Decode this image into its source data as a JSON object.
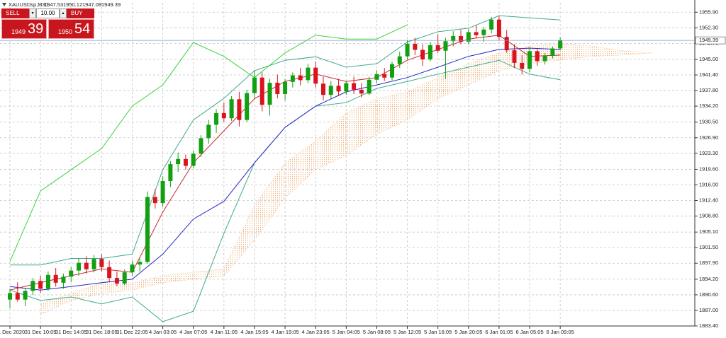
{
  "chart_data": {
    "type": "candlestick",
    "symbol": "XAUUSDsp,M30",
    "up_color": "#12a012",
    "down_color": "#d8141e",
    "grid": true,
    "grid_color": "#c4c4c4",
    "price_line_color": "#7b98d4",
    "ylim": [
      1883.4,
      1958.07
    ],
    "yticks": [
      {
        "value": 1955.9,
        "label": "1955.90"
      },
      {
        "value": 1952.3,
        "label": "1952.30"
      },
      {
        "value": 1948.7,
        "label": "1948.70"
      },
      {
        "value": 1945.0,
        "label": "1945.00"
      },
      {
        "value": 1941.4,
        "label": "1941.40"
      },
      {
        "value": 1937.8,
        "label": "1937.80"
      },
      {
        "value": 1934.2,
        "label": "1934.20"
      },
      {
        "value": 1930.5,
        "label": "1930.50"
      },
      {
        "value": 1926.9,
        "label": "1926.90"
      },
      {
        "value": 1923.3,
        "label": "1923.30"
      },
      {
        "value": 1919.6,
        "label": "1919.60"
      },
      {
        "value": 1916.0,
        "label": "1916.00"
      },
      {
        "value": 1912.4,
        "label": "1912.40"
      },
      {
        "value": 1908.8,
        "label": "1908.80"
      },
      {
        "value": 1905.1,
        "label": "1905.10"
      },
      {
        "value": 1901.5,
        "label": "1901.50"
      },
      {
        "value": 1897.9,
        "label": "1897.90"
      },
      {
        "value": 1894.2,
        "label": "1894.20"
      },
      {
        "value": 1890.6,
        "label": "1890.60"
      },
      {
        "value": 1887.0,
        "label": "1887.00"
      },
      {
        "value": 1883.4,
        "label": "1883.40"
      }
    ],
    "xlim": [
      -1,
      86
    ],
    "xticks": [
      {
        "value": 0,
        "label": "31 Dec 2020"
      },
      {
        "value": 4,
        "label": "31 Dec 10:05"
      },
      {
        "value": 8,
        "label": "31 Dec 14:05"
      },
      {
        "value": 12,
        "label": "31 Dec 18:05"
      },
      {
        "value": 16,
        "label": "31 Dec 22:05"
      },
      {
        "value": 20,
        "label": "4 Jan 03:05"
      },
      {
        "value": 24,
        "label": "4 Jan 07:05"
      },
      {
        "value": 28,
        "label": "4 Jan 11:05"
      },
      {
        "value": 32,
        "label": "4 Jan 15:05"
      },
      {
        "value": 36,
        "label": "4 Jan 19:05"
      },
      {
        "value": 40,
        "label": "4 Jan 23:05"
      },
      {
        "value": 44,
        "label": "5 Jan 04:05"
      },
      {
        "value": 48,
        "label": "5 Jan 08:05"
      },
      {
        "value": 52,
        "label": "5 Jan 12:05"
      },
      {
        "value": 56,
        "label": "5 Jan 16:05"
      },
      {
        "value": 60,
        "label": "5 Jan 20:05"
      },
      {
        "value": 64,
        "label": "6 Jan 01:05"
      },
      {
        "value": 68,
        "label": "6 Jan 05:05"
      },
      {
        "value": 72,
        "label": "6 Jan 09:05"
      }
    ],
    "candles": {
      "open": [
        1889.5,
        1891.0,
        1889.5,
        1891.5,
        1893.8,
        1892.0,
        1895.2,
        1893.4,
        1894.8,
        1896.2,
        1898.0,
        1896.5,
        1898.9,
        1897.0,
        1894.5,
        1893.2,
        1895.8,
        1897.6,
        1898.2,
        1913.2,
        1911.8,
        1916.9,
        1920.8,
        1922.0,
        1920.4,
        1923.2,
        1926.8,
        1929.9,
        1932.6,
        1931.4,
        1935.8,
        1931.0,
        1937.2,
        1940.8,
        1934.5,
        1939.6,
        1937.0,
        1939.8,
        1941.3,
        1940.2,
        1943.1,
        1939.4,
        1936.8,
        1938.9,
        1937.6,
        1939.5,
        1938.0,
        1937.1,
        1940.3,
        1941.6,
        1940.8,
        1943.9,
        1945.7,
        1948.6,
        1947.2,
        1945.0,
        1948.3,
        1947.0,
        1949.2,
        1950.4,
        1949.1,
        1951.3,
        1950.6,
        1951.9,
        1954.2,
        1950.2,
        1947.1,
        1944.2,
        1942.8,
        1946.9,
        1944.6,
        1945.8,
        1947.53
      ],
      "high": [
        1892.0,
        1893.5,
        1892.0,
        1894.5,
        1895.0,
        1896.0,
        1896.8,
        1895.5,
        1897.0,
        1899.0,
        1899.5,
        1899.8,
        1900.0,
        1898.5,
        1896.0,
        1896.5,
        1898.5,
        1899.0,
        1914.5,
        1915.0,
        1918.0,
        1921.5,
        1923.5,
        1923.0,
        1924.0,
        1927.5,
        1931.0,
        1933.5,
        1935.0,
        1936.5,
        1937.5,
        1938.0,
        1942.5,
        1942.0,
        1940.5,
        1941.5,
        1940.5,
        1942.0,
        1943.0,
        1944.0,
        1944.5,
        1941.0,
        1940.0,
        1940.5,
        1940.0,
        1941.0,
        1939.5,
        1941.0,
        1942.5,
        1943.0,
        1944.5,
        1946.8,
        1949.5,
        1950.0,
        1948.5,
        1949.0,
        1950.8,
        1950.0,
        1951.5,
        1951.8,
        1952.0,
        1953.0,
        1952.5,
        1954.8,
        1955.0,
        1951.8,
        1948.5,
        1946.0,
        1947.8,
        1947.5,
        1946.5,
        1948.0,
        1950.12
      ],
      "low": [
        1887.5,
        1889.0,
        1888.0,
        1890.5,
        1891.0,
        1891.5,
        1892.5,
        1892.0,
        1893.5,
        1895.0,
        1895.5,
        1895.8,
        1896.0,
        1893.5,
        1892.6,
        1892.8,
        1895.0,
        1896.0,
        1897.8,
        1910.5,
        1911.0,
        1915.5,
        1919.0,
        1919.5,
        1919.8,
        1922.5,
        1925.5,
        1928.0,
        1930.5,
        1930.8,
        1929.5,
        1930.5,
        1936.0,
        1933.0,
        1932.0,
        1936.0,
        1935.5,
        1938.5,
        1939.0,
        1939.5,
        1938.5,
        1935.5,
        1936.0,
        1936.5,
        1936.8,
        1937.0,
        1936.2,
        1936.8,
        1939.5,
        1940.0,
        1940.2,
        1943.0,
        1945.0,
        1946.0,
        1943.5,
        1944.5,
        1946.5,
        1940.5,
        1948.0,
        1948.5,
        1948.5,
        1950.0,
        1949.0,
        1951.0,
        1949.5,
        1946.5,
        1943.0,
        1941.5,
        1942.0,
        1943.5,
        1943.8,
        1945.2,
        1947.08
      ],
      "close": [
        1891.0,
        1889.5,
        1891.5,
        1893.8,
        1892.0,
        1895.2,
        1893.4,
        1894.8,
        1896.2,
        1898.0,
        1896.5,
        1898.9,
        1897.0,
        1894.5,
        1893.2,
        1895.8,
        1897.6,
        1898.2,
        1913.2,
        1911.8,
        1916.9,
        1920.8,
        1922.0,
        1920.4,
        1923.2,
        1926.8,
        1929.9,
        1932.6,
        1931.4,
        1935.8,
        1931.0,
        1937.2,
        1940.8,
        1934.5,
        1939.6,
        1937.0,
        1939.8,
        1941.3,
        1940.2,
        1943.1,
        1939.4,
        1936.8,
        1938.9,
        1937.6,
        1939.5,
        1938.0,
        1937.1,
        1940.3,
        1941.6,
        1940.8,
        1943.9,
        1945.7,
        1948.6,
        1947.2,
        1945.0,
        1948.3,
        1947.0,
        1949.2,
        1950.4,
        1949.1,
        1951.3,
        1950.6,
        1951.9,
        1954.2,
        1950.2,
        1947.1,
        1944.2,
        1942.8,
        1946.9,
        1944.6,
        1945.8,
        1947.53,
        1949.39
      ]
    },
    "indicators": {
      "x": [
        0,
        4,
        8,
        12,
        16,
        20,
        24,
        28,
        32,
        36,
        40,
        44,
        48,
        52,
        56,
        60,
        64,
        68,
        72,
        76,
        80,
        84
      ],
      "cloud": {
        "color": "#f0b27a",
        "upper": [
          null,
          1888.5,
          1890.9,
          1893.4,
          1893.4,
          1895.0,
          1895.8,
          1896.6,
          1911.3,
          1921.1,
          1926.1,
          1932.6,
          1935.9,
          1937.5,
          1940.8,
          1944.0,
          1946.5,
          1948.1,
          1948.6,
          1948.1,
          1947.0,
          1946.5
        ],
        "lower": [
          null,
          1886.0,
          1889.3,
          1890.9,
          1891.7,
          1893.4,
          1894.2,
          1895.0,
          1903.2,
          1913.0,
          1919.5,
          1922.8,
          1927.7,
          1931.0,
          1935.9,
          1939.1,
          1942.4,
          1944.0,
          1944.8,
          1945.7,
          1946.0,
          1946.5
        ]
      },
      "series": [
        {
          "color": "#3ea98c",
          "values": [
            1897.5,
            1897.5,
            1899.0,
            1899.0,
            1900.0,
            1919.5,
            1931.0,
            1936.0,
            1942.4,
            1944.8,
            1945.6,
            1943.2,
            1944.0,
            1949.0,
            1951.4,
            1952.2,
            1955.1,
            1954.6,
            1954.1,
            null,
            null,
            null
          ]
        },
        {
          "color": "#3ea98c",
          "values": [
            1891.7,
            1889.3,
            1890.1,
            1888.5,
            1890.1,
            1884.4,
            1886.8,
            1904.8,
            1921.1,
            1929.3,
            1934.2,
            1935.0,
            1938.3,
            1939.9,
            1941.6,
            1943.2,
            1944.8,
            1941.6,
            1940.3,
            null,
            null,
            null
          ]
        },
        {
          "color": "#2626c4",
          "values": [
            1892.5,
            1891.7,
            1892.5,
            1893.4,
            1894.2,
            1900.0,
            1908.1,
            1912.2,
            1921.1,
            1929.3,
            1934.2,
            1937.5,
            1939.1,
            1940.8,
            1943.2,
            1945.7,
            1947.3,
            1947.6,
            1947.3,
            null,
            null,
            null
          ]
        },
        {
          "color": "#c82828",
          "values": [
            1891.7,
            1893.4,
            1895.0,
            1896.6,
            1895.8,
            1909.7,
            1921.1,
            1928.5,
            1935.9,
            1939.9,
            1941.6,
            1939.9,
            1940.8,
            1944.8,
            1947.3,
            1949.7,
            1950.6,
            1945.7,
            1946.0,
            null,
            null,
            null
          ]
        },
        {
          "color": "#3dd23d",
          "values": [
            1898.3,
            1914.6,
            1919.5,
            1924.4,
            1934.2,
            1939.1,
            1948.9,
            1945.7,
            1940.8,
            1946.5,
            1950.6,
            1949.7,
            1949.7,
            1953.0,
            null,
            null,
            null,
            null,
            null,
            null,
            null,
            null
          ]
        }
      ]
    }
  },
  "trade_panel": {
    "sell": "SELL",
    "buy": "BUY",
    "lots": "10.00",
    "bid_big": "1949",
    "bid_small": "39",
    "ask_big": "1950",
    "ask_small": "54"
  }
}
